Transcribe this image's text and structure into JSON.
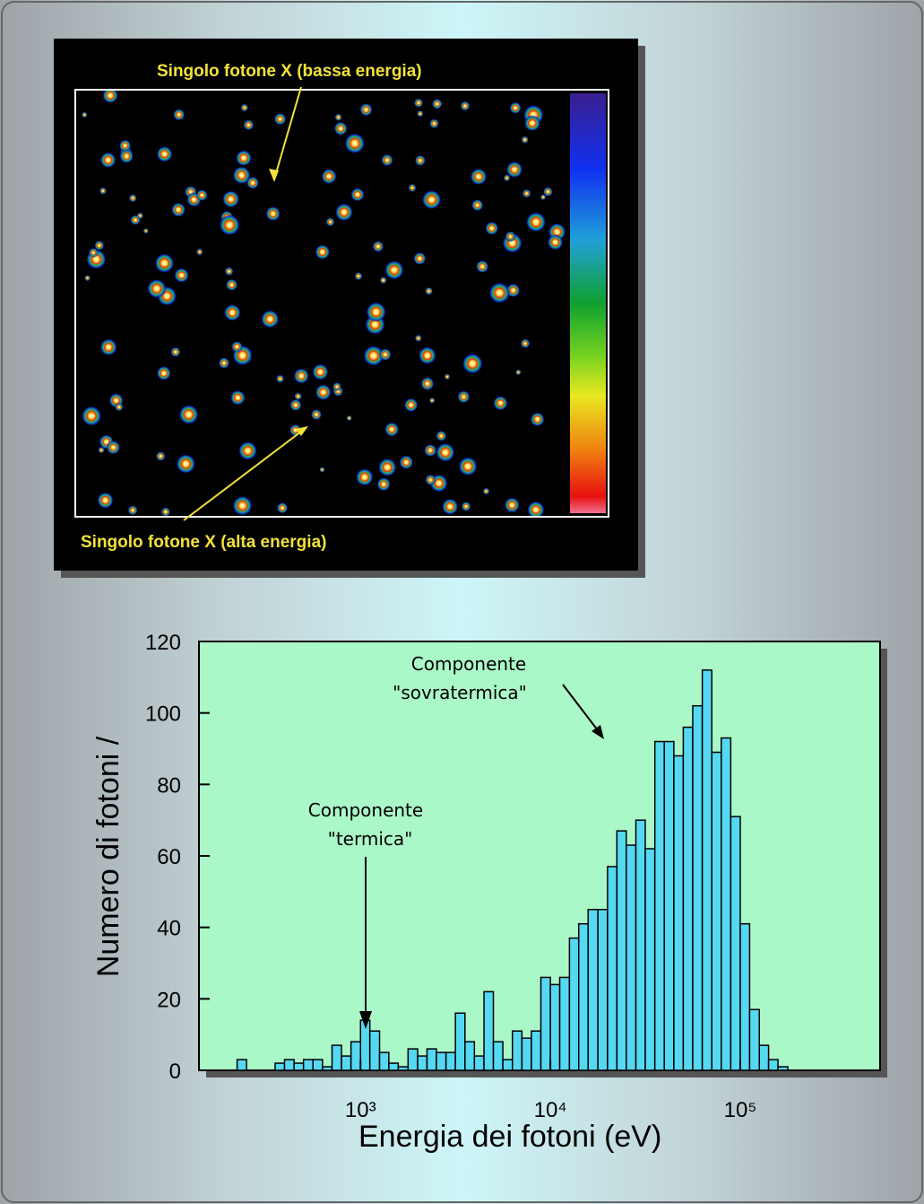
{
  "image": {
    "labels": [
      "Singolo fotone X (bassa energia)",
      "Singolo fotone X (alta energia)"
    ]
  },
  "chart_data": {
    "type": "histogram",
    "xlabel": "Energia dei fotoni (eV)",
    "ylabel": "Numero di fotoni /",
    "xscale": "log",
    "bins": [
      200,
      224,
      251,
      282,
      316,
      355,
      398,
      447,
      501,
      562,
      631,
      708,
      794,
      891,
      1000,
      1120,
      1260,
      1410,
      1580,
      1780,
      2000,
      2240,
      2510,
      2820,
      3160,
      3550,
      3980,
      4470,
      5010,
      5620,
      6310,
      7080,
      7940,
      8910,
      10000,
      11200,
      12600,
      14100,
      15800,
      17800,
      20000,
      22400,
      25100,
      28200,
      31600,
      35500,
      39800,
      44700,
      50100,
      56200,
      63100,
      70800,
      79400,
      89100,
      100000,
      112000,
      126000,
      141000,
      158000,
      178000,
      200000
    ],
    "values": [
      0,
      3,
      0,
      0,
      0,
      2,
      3,
      2,
      3,
      3,
      1,
      7,
      4,
      8,
      14,
      11,
      5,
      2,
      1,
      6,
      4,
      6,
      5,
      5,
      16,
      8,
      4,
      22,
      8,
      3,
      11,
      9,
      11,
      26,
      24,
      26,
      37,
      41,
      45,
      45,
      57,
      67,
      63,
      70,
      62,
      92,
      92,
      88,
      96,
      102,
      112,
      89,
      93,
      71,
      41,
      17,
      7,
      3,
      1,
      0
    ],
    "color": "#55d8f2",
    "xlim": [
      141,
      545000
    ],
    "xticks": [
      {
        "value": 1000,
        "label": "10³"
      },
      {
        "value": 10000,
        "label": "10⁴"
      },
      {
        "value": 100000,
        "label": "10⁵"
      }
    ],
    "ylim": [
      0,
      120
    ],
    "yticks": [
      0,
      20,
      40,
      60,
      80,
      100,
      120
    ],
    "annotations": [
      {
        "lines": [
          "Componente",
          "\"sovratermica\""
        ]
      },
      {
        "lines": [
          "Componente",
          "\"termica\""
        ]
      }
    ]
  }
}
